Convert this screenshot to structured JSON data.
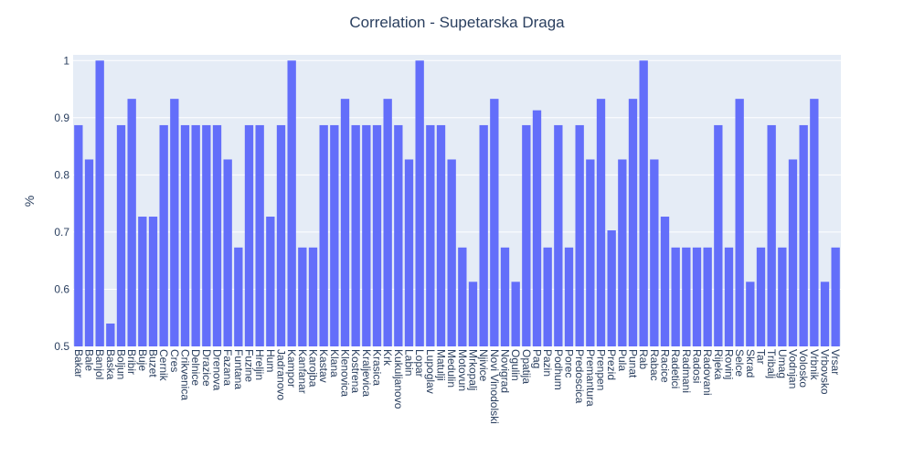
{
  "chart_data": {
    "type": "bar",
    "title": "Correlation - Supetarska Draga",
    "y_label": "%",
    "categories": [
      "Bakar",
      "Bale",
      "Banjol",
      "Baska",
      "Boljun",
      "Bribir",
      "Buje",
      "Buzet",
      "Cernik",
      "Cres",
      "Crikvenica",
      "Delnice",
      "Drazice",
      "Drenova",
      "Fazana",
      "Funtana",
      "Fuzine",
      "Hreljin",
      "Hum",
      "Jadranovo",
      "Kampor",
      "Kanfanar",
      "Karojba",
      "Kastav",
      "Klana",
      "Klenovica",
      "Kostrena",
      "Kraljevica",
      "Krasica",
      "Krk",
      "Kukuljanovo",
      "Labin",
      "Lopar",
      "Lupoglav",
      "Matulji",
      "Medulin",
      "Motovun",
      "Mrkopalj",
      "Njivice",
      "Novi Vinodolski",
      "Novigrad",
      "Ogulin",
      "Opatija",
      "Pag",
      "Pazin",
      "Podhum",
      "Porec",
      "Predoscica",
      "Premantura",
      "Prenpen",
      "Prezid",
      "Pula",
      "Punat",
      "Rab",
      "Rabac",
      "Racice",
      "Radetici",
      "Radmani",
      "Radosi",
      "Radovani",
      "Rijeka",
      "Rovinj",
      "Selce",
      "Skrad",
      "Tar",
      "Tribalj",
      "Umag",
      "Vodnjan",
      "Volosko",
      "Vrbnik",
      "Vrbovsko",
      "Vrsar"
    ],
    "values": [
      0.887,
      0.827,
      1,
      0.54,
      0.887,
      0.933,
      0.727,
      0.727,
      0.887,
      0.933,
      0.887,
      0.887,
      0.887,
      0.887,
      0.827,
      0.673,
      0.887,
      0.887,
      0.727,
      0.887,
      1,
      0.673,
      0.673,
      0.887,
      0.887,
      0.933,
      0.887,
      0.887,
      0.887,
      0.933,
      0.887,
      0.827,
      1,
      0.887,
      0.887,
      0.827,
      0.673,
      0.613,
      0.887,
      0.933,
      0.673,
      0.613,
      0.887,
      0.913,
      0.673,
      0.887,
      0.673,
      0.887,
      0.827,
      0.933,
      0.703,
      0.827,
      0.933,
      1,
      0.827,
      0.727,
      0.673,
      0.673,
      0.673,
      0.673,
      0.887,
      0.673,
      0.933,
      0.613,
      0.673,
      0.887,
      0.673,
      0.827,
      0.887,
      0.933,
      0.613,
      0.673
    ],
    "color": "#636efa",
    "ylim": [
      0.5,
      1.01
    ],
    "yticks": [
      0.5,
      0.6,
      0.7,
      0.8,
      0.9,
      1
    ],
    "grid": true
  }
}
